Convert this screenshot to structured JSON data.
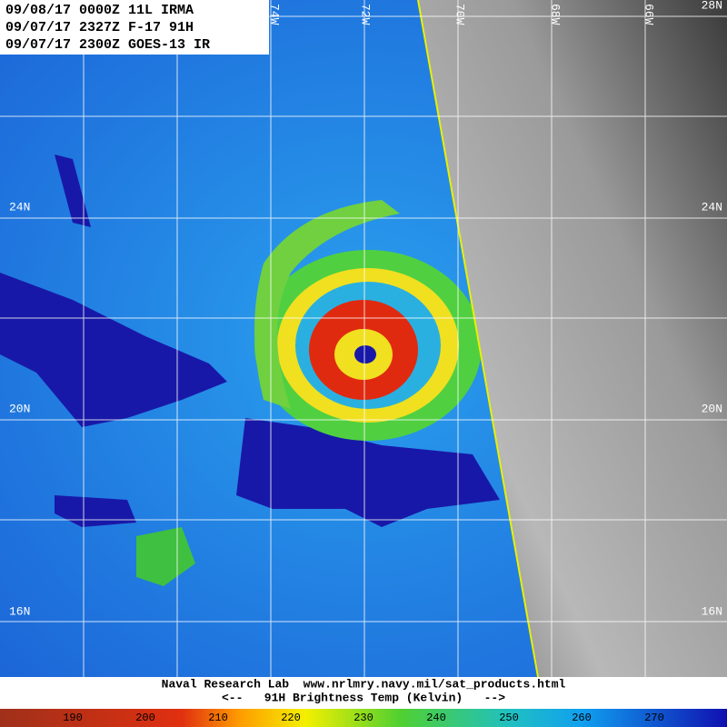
{
  "header": {
    "lines": [
      "09/08/17 0000Z 11L IRMA",
      "09/07/17 2327Z F-17 91H",
      "09/07/17 2300Z GOES-13 IR"
    ]
  },
  "latitude_labels": [
    "28N",
    "24N",
    "20N",
    "16N"
  ],
  "longitude_labels": [
    "74W",
    "72W",
    "70W",
    "68W",
    "66W"
  ],
  "footer": {
    "credit": "Naval Research Lab  www.nrlmry.navy.mil/sat_products.html",
    "caption": "<--   91H Brightness Temp (Kelvin)   -->"
  },
  "colorbar": {
    "labels": [
      "190",
      "200",
      "210",
      "220",
      "230",
      "240",
      "250",
      "260",
      "270"
    ]
  }
}
